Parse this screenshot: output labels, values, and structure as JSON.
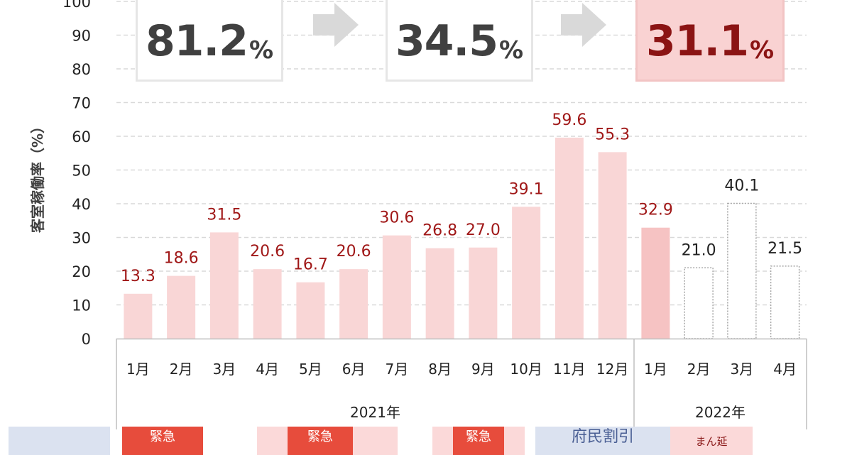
{
  "chart_data": {
    "type": "bar",
    "ylabel": "客室稼働率（%）",
    "ylim": [
      0,
      100
    ],
    "yticks": [
      0,
      10,
      20,
      30,
      40,
      50,
      60,
      70,
      80,
      90,
      100
    ],
    "categories": [
      "1月",
      "2月",
      "3月",
      "4月",
      "5月",
      "6月",
      "7月",
      "8月",
      "9月",
      "10月",
      "11月",
      "12月",
      "1月",
      "2月",
      "3月",
      "4月"
    ],
    "values": [
      13.3,
      18.6,
      31.5,
      20.6,
      16.7,
      20.6,
      30.6,
      26.8,
      27.0,
      39.1,
      59.6,
      55.3,
      32.9,
      21.0,
      40.1,
      21.5
    ],
    "value_labels": [
      "13.3",
      "18.6",
      "31.5",
      "20.6",
      "16.7",
      "20.6",
      "30.6",
      "26.8",
      "27.0",
      "39.1",
      "59.6",
      "55.3",
      "32.9",
      "21.0",
      "40.1",
      "21.5"
    ],
    "bar_style": [
      "filled",
      "filled",
      "filled",
      "filled",
      "filled",
      "filled",
      "filled",
      "filled",
      "filled",
      "filled",
      "filled",
      "filled",
      "filled",
      "outline",
      "outline",
      "outline"
    ],
    "groups": [
      {
        "label": "2021年",
        "start": 0,
        "end": 11
      },
      {
        "label": "2022年",
        "start": 12,
        "end": 15
      }
    ],
    "grid": true,
    "colors": {
      "bar_fill": "#f9d6d6",
      "bar_fill_strong": "#f6c3c3",
      "outline": "#a6a6a6",
      "label_red": "#a01818",
      "label_dark": "#222222",
      "grid": "#d9d9d9",
      "axis_text": "#222222"
    }
  },
  "kpis": [
    {
      "value": "81.2",
      "unit": "%",
      "highlight": false
    },
    {
      "value": "34.5",
      "unit": "%",
      "highlight": false
    },
    {
      "value": "31.1",
      "unit": "%",
      "highlight": true
    }
  ],
  "strip": [
    {
      "text": "",
      "style": "blue-partial"
    },
    {
      "text": "緊急",
      "style": "dark"
    },
    {
      "text": "",
      "style": "light"
    },
    {
      "text": "緊急",
      "style": "dark"
    },
    {
      "text": "",
      "style": "light"
    },
    {
      "text": "緊急",
      "style": "dark"
    },
    {
      "text": "府民割引",
      "style": "blue"
    },
    {
      "text": "まん延",
      "style": "pinktext"
    }
  ]
}
